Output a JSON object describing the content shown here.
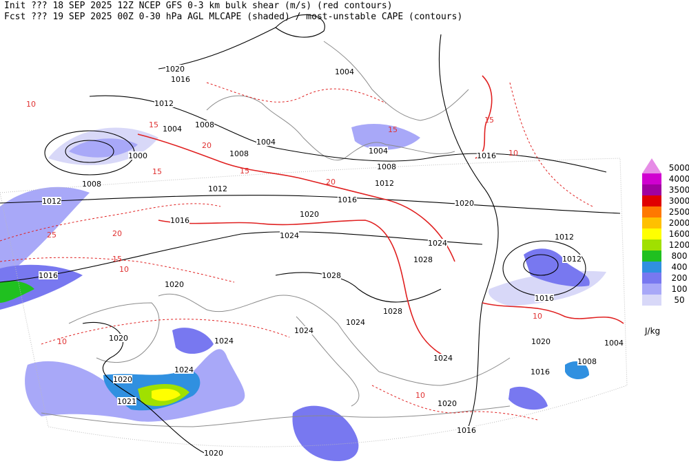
{
  "header": {
    "line1": "Init  ??? 18 SEP 2025 12Z  NCEP GFS 0-3 km bulk shear (m/s) (red contours)",
    "line2": "Fcst ??? 19 SEP 2025 00Z  0-30 hPa AGL MLCAPE (shaded) / most-unstable CAPE (contours)"
  },
  "legend": {
    "unit": "J/kg",
    "levels": [
      {
        "label": "5000",
        "color": "#e68ce6"
      },
      {
        "label": "4000",
        "color": "#d000d0"
      },
      {
        "label": "3500",
        "color": "#a000a0"
      },
      {
        "label": "3000",
        "color": "#e00000"
      },
      {
        "label": "2500",
        "color": "#ff7800"
      },
      {
        "label": "2000",
        "color": "#ffc000"
      },
      {
        "label": "1600",
        "color": "#ffff00"
      },
      {
        "label": "1200",
        "color": "#a0e000"
      },
      {
        "label": "800",
        "color": "#20c020"
      },
      {
        "label": "400",
        "color": "#3090e0"
      },
      {
        "label": "200",
        "color": "#7878f0"
      },
      {
        "label": "100",
        "color": "#a8a8f8"
      },
      {
        "label": "50",
        "color": "#d8d8f8"
      }
    ]
  },
  "pressure_labels": [
    "1020",
    "1016",
    "1012",
    "1004",
    "1008",
    "1000",
    "1008",
    "1012",
    "1004",
    "1008",
    "1012",
    "1004",
    "1004",
    "1008",
    "1012",
    "1016",
    "1016",
    "1020",
    "1020",
    "1016",
    "1024",
    "1024",
    "1028",
    "1028",
    "1016",
    "1020",
    "1012",
    "1012",
    "1016",
    "1028",
    "1024",
    "1024",
    "1024",
    "1020",
    "1024",
    "1020",
    "1020",
    "1004",
    "1008",
    "1016",
    "1024",
    "1021",
    "1020",
    "1016",
    "1020"
  ],
  "shear_labels": [
    "15",
    "20",
    "15",
    "20",
    "25",
    "20",
    "15",
    "10",
    "15",
    "10",
    "15",
    "10",
    "15",
    "10",
    "10",
    "10"
  ]
}
